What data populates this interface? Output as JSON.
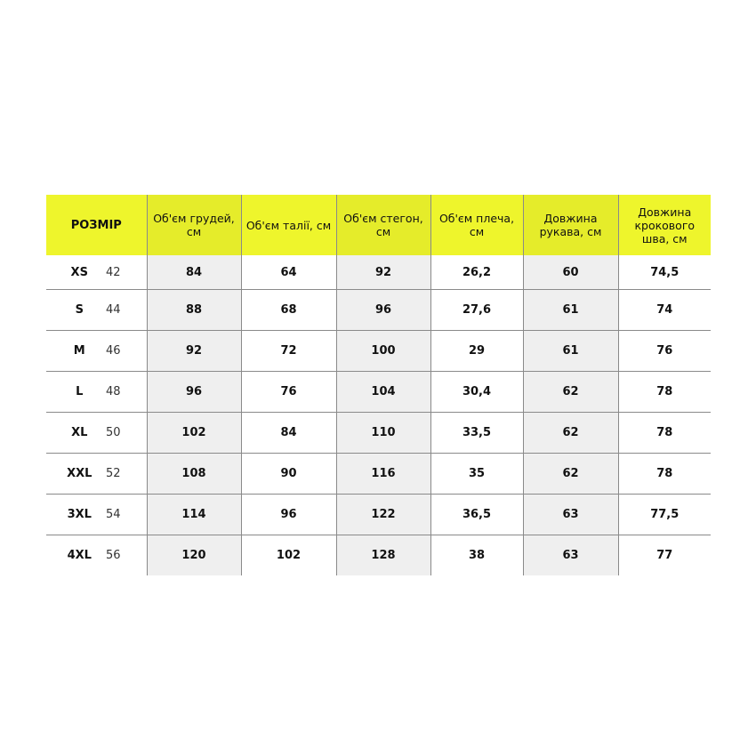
{
  "headers": [
    "РОЗМІР",
    "Об'єм грудей, см",
    "Об'єм талії, см",
    "Об'єм стегон, см",
    "Об'єм плеча, см",
    "Довжина рукава, см",
    "Довжина крокового шва, см"
  ],
  "colors": {
    "header": "#eef52c",
    "shaded": "#efefef"
  },
  "rows": [
    {
      "size": "XS",
      "eu": "42",
      "values": [
        "84",
        "64",
        "92",
        "26,2",
        "60",
        "74,5"
      ]
    },
    {
      "size": "S",
      "eu": "44",
      "values": [
        "88",
        "68",
        "96",
        "27,6",
        "61",
        "74"
      ]
    },
    {
      "size": "M",
      "eu": "46",
      "values": [
        "92",
        "72",
        "100",
        "29",
        "61",
        "76"
      ]
    },
    {
      "size": "L",
      "eu": "48",
      "values": [
        "96",
        "76",
        "104",
        "30,4",
        "62",
        "78"
      ]
    },
    {
      "size": "XL",
      "eu": "50",
      "values": [
        "102",
        "84",
        "110",
        "33,5",
        "62",
        "78"
      ]
    },
    {
      "size": "XXL",
      "eu": "52",
      "values": [
        "108",
        "90",
        "116",
        "35",
        "62",
        "78"
      ]
    },
    {
      "size": "3XL",
      "eu": "54",
      "values": [
        "114",
        "96",
        "122",
        "36,5",
        "63",
        "77,5"
      ]
    },
    {
      "size": "4XL",
      "eu": "56",
      "values": [
        "120",
        "102",
        "128",
        "38",
        "63",
        "77"
      ]
    }
  ]
}
